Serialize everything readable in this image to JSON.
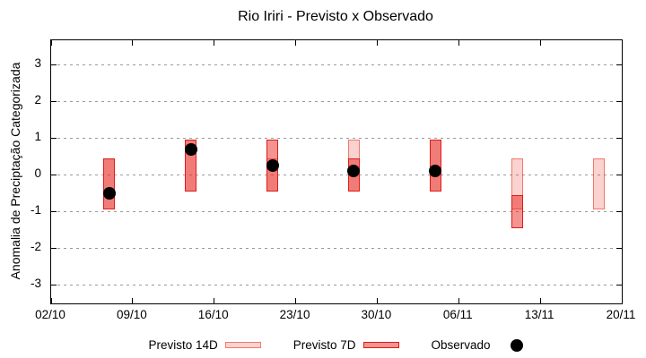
{
  "chart_data": {
    "type": "bar",
    "title": "Rio Iriri - Previsto x Observado",
    "ylabel": "Anomalia de Preciptação Categorizada",
    "xlabel": "",
    "x_tick_labels": [
      "02/10",
      "09/10",
      "16/10",
      "23/10",
      "30/10",
      "06/11",
      "13/11",
      "20/11"
    ],
    "x_tick_days": [
      0,
      7,
      14,
      21,
      28,
      35,
      42,
      49
    ],
    "xlim_days": [
      0,
      49
    ],
    "y_ticks": [
      3,
      2,
      1,
      0,
      -1,
      -2,
      -3
    ],
    "ylim": [
      -3.5,
      3.65
    ],
    "grid": "horizontal-dashed",
    "legend_position": "bottom-center",
    "series": [
      {
        "name": "Previsto 14D",
        "type": "range-bar",
        "fill": "rgba(232,48,35,0.22)",
        "border": "rgba(232,48,35,0.55)",
        "points": [
          {
            "date": "07/10",
            "day": 5,
            "low": -0.95,
            "high": 0.45
          },
          {
            "date": "14/10",
            "day": 12,
            "low": -0.45,
            "high": 0.95
          },
          {
            "date": "21/10",
            "day": 19,
            "low": -0.45,
            "high": 0.45
          },
          {
            "date": "28/10",
            "day": 26,
            "low": -0.45,
            "high": 0.95
          },
          {
            "date": "04/11",
            "day": 33,
            "low": -0.45,
            "high": 0.95
          },
          {
            "date": "11/11",
            "day": 40,
            "low": -0.95,
            "high": 0.45
          },
          {
            "date": "18/11",
            "day": 47,
            "low": -0.95,
            "high": 0.45
          }
        ]
      },
      {
        "name": "Previsto 7D",
        "type": "range-bar",
        "fill": "rgba(232,28,22,0.47)",
        "border": "#dd1c1c",
        "points": [
          {
            "date": "07/10",
            "day": 5,
            "low": -0.95,
            "high": 0.45
          },
          {
            "date": "14/10",
            "day": 12,
            "low": -0.45,
            "high": 0.95
          },
          {
            "date": "21/10",
            "day": 19,
            "low": -0.45,
            "high": 0.95
          },
          {
            "date": "28/10",
            "day": 26,
            "low": -0.45,
            "high": 0.45
          },
          {
            "date": "04/11",
            "day": 33,
            "low": -0.45,
            "high": 0.95
          },
          {
            "date": "11/11",
            "day": 40,
            "low": -1.45,
            "high": -0.55
          }
        ]
      },
      {
        "name": "Observado",
        "type": "scatter",
        "color": "#000000",
        "points": [
          {
            "date": "07/10",
            "day": 5,
            "value": -0.5
          },
          {
            "date": "14/10",
            "day": 12,
            "value": 0.7
          },
          {
            "date": "21/10",
            "day": 19,
            "value": 0.25
          },
          {
            "date": "28/10",
            "day": 26,
            "value": 0.1
          },
          {
            "date": "04/11",
            "day": 33,
            "value": 0.1
          }
        ]
      }
    ],
    "colors": {
      "background": "#ffffff",
      "axis": "#000000",
      "grid": "#9a9a9a",
      "text": "#000000"
    }
  },
  "legend": {
    "items": [
      {
        "label": "Previsto 14D",
        "series": 0,
        "swatch": "box"
      },
      {
        "label": "Previsto 7D",
        "series": 1,
        "swatch": "box"
      },
      {
        "label": "Observado",
        "series": 2,
        "swatch": "dot"
      }
    ]
  }
}
